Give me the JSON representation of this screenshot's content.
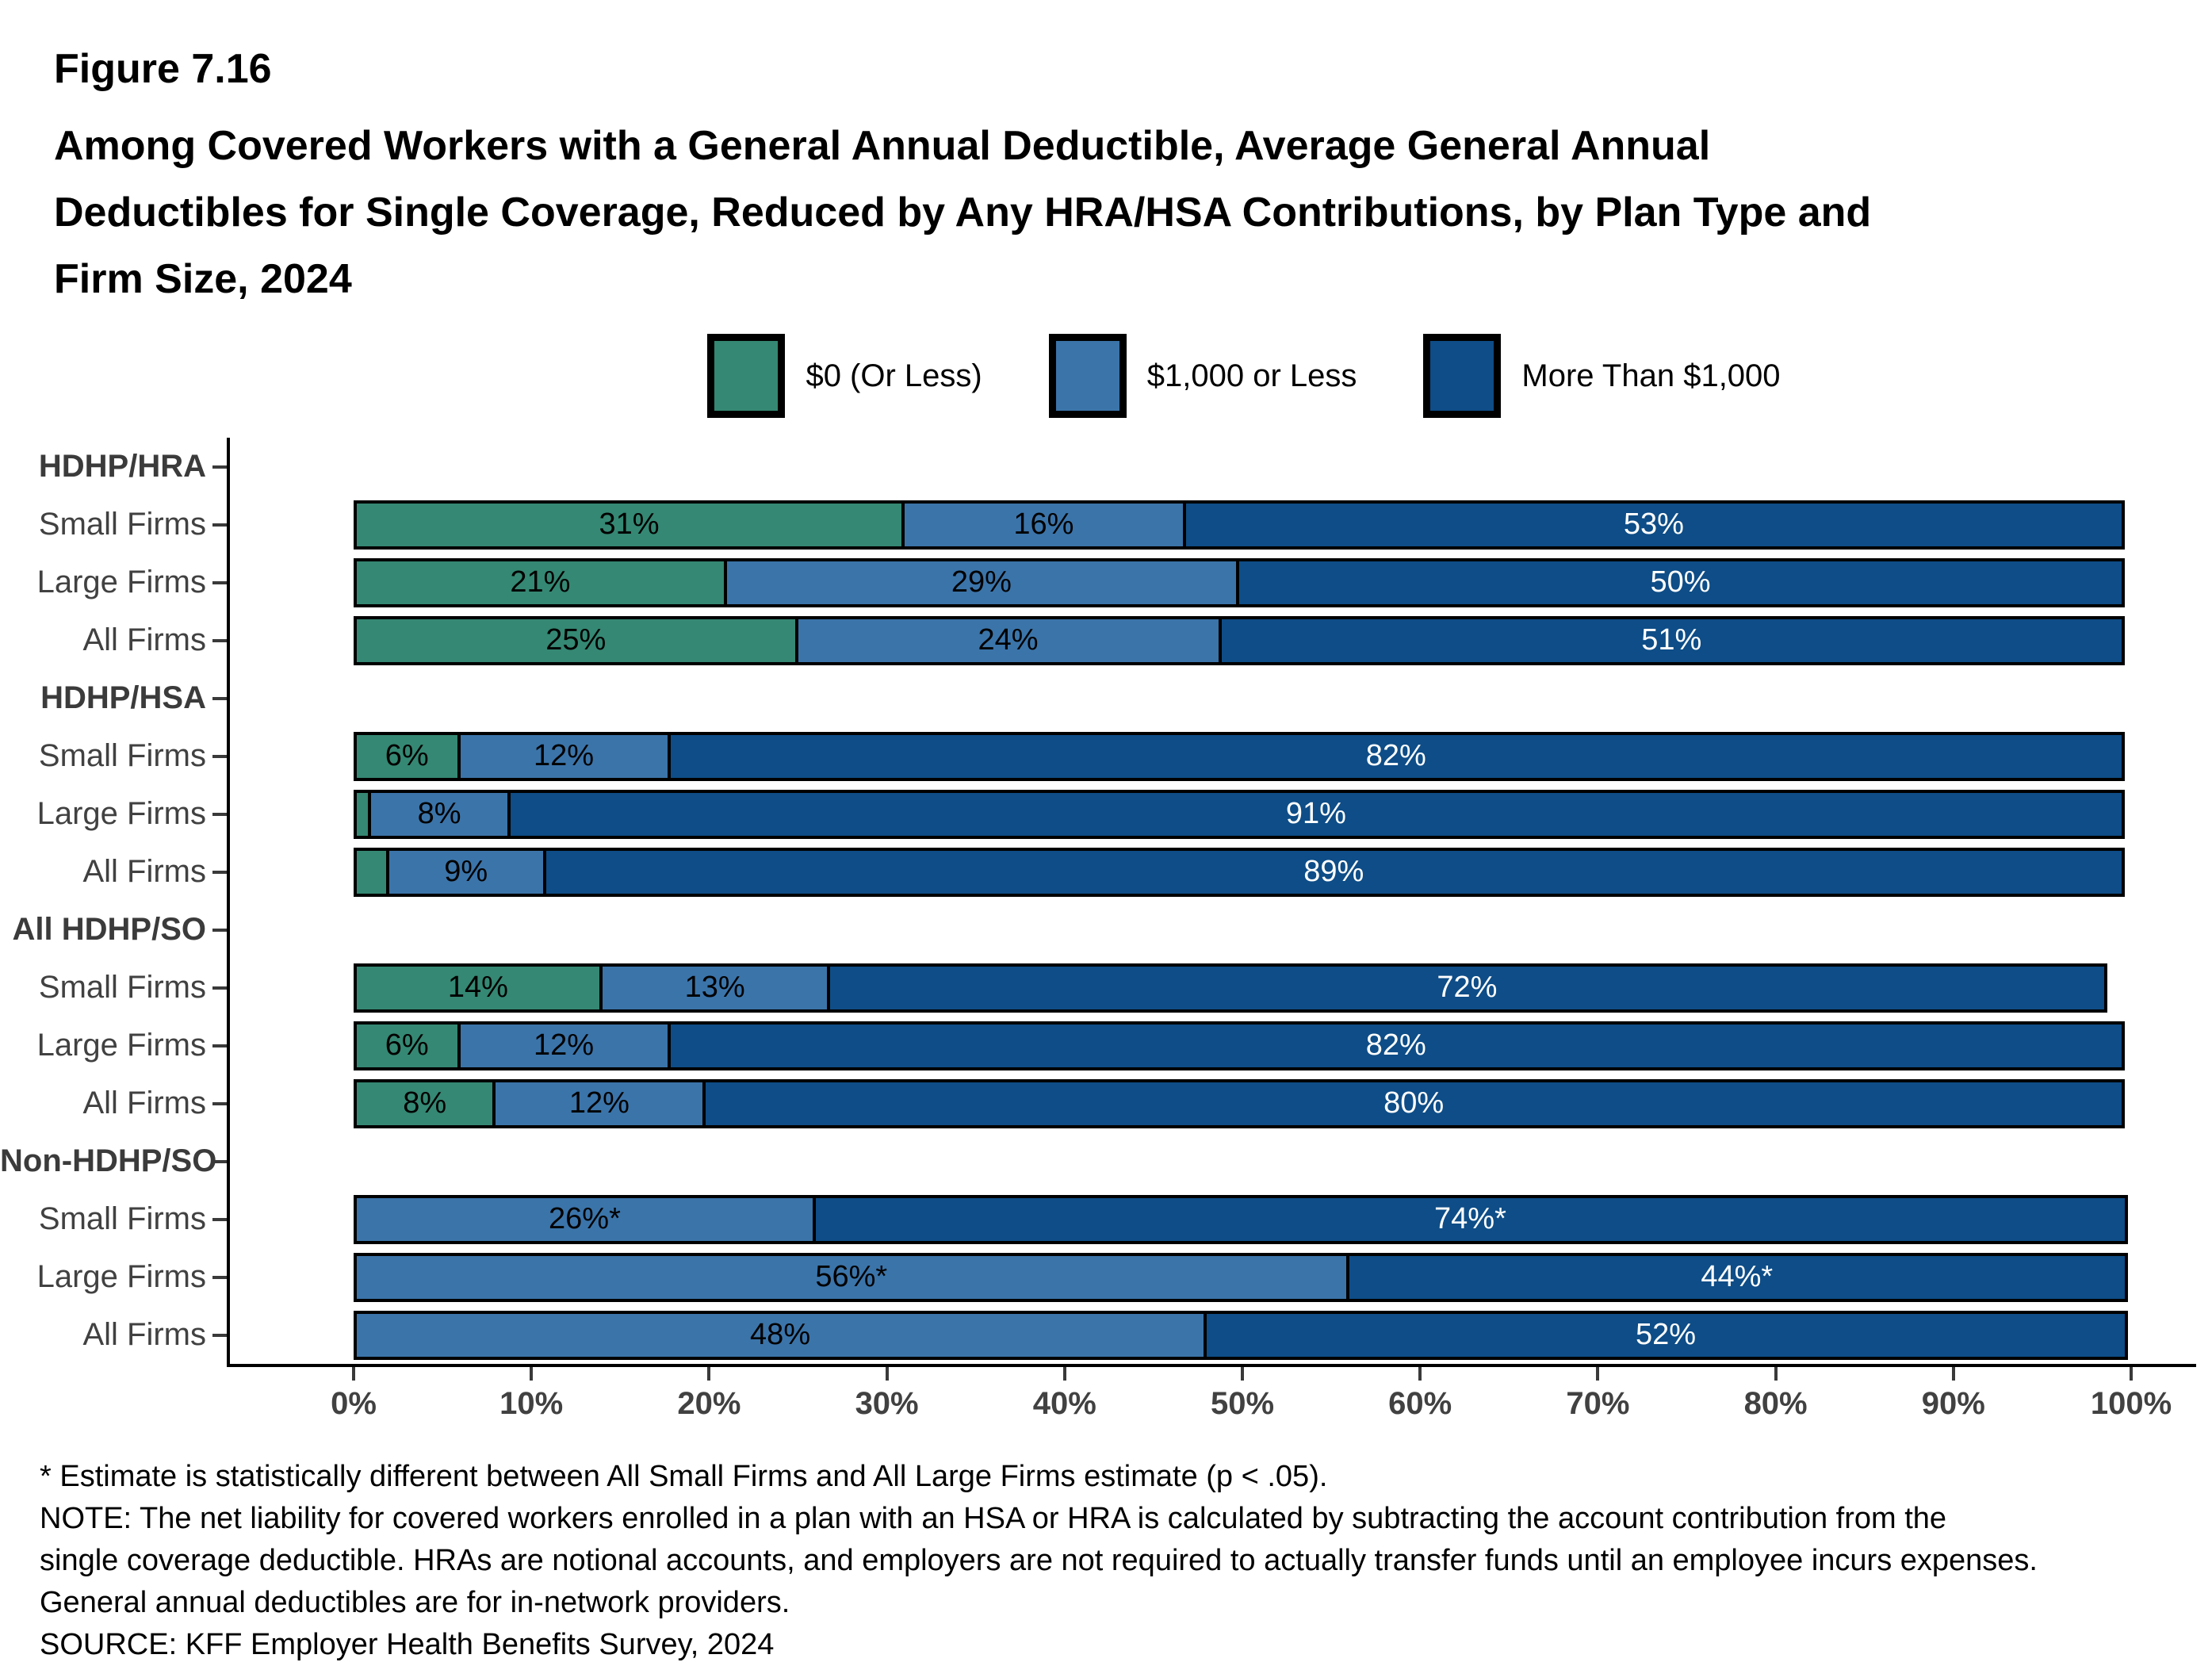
{
  "figure": {
    "number": "Figure 7.16",
    "title_lines": [
      "Among Covered Workers with a General Annual Deductible, Average General Annual",
      "Deductibles for Single Coverage, Reduced by Any HRA/HSA Contributions, by Plan Type and",
      "Firm Size, 2024"
    ]
  },
  "chart_data": {
    "type": "bar",
    "orientation": "horizontal",
    "stacked": true,
    "unit": "percent",
    "xlim": [
      0,
      100
    ],
    "x_ticks": [
      "0%",
      "10%",
      "20%",
      "30%",
      "40%",
      "50%",
      "60%",
      "70%",
      "80%",
      "90%",
      "100%"
    ],
    "grid": false,
    "legend": {
      "position": "top-center",
      "items": [
        {
          "name": "$0 (Or Less)",
          "color": "#358873",
          "label_text_color": "#000000"
        },
        {
          "name": "$1,000 or Less",
          "color": "#3B74A9",
          "label_text_color": "#000000"
        },
        {
          "name": "More Than $1,000",
          "color": "#0E4D87",
          "label_text_color": "#ffffff"
        }
      ]
    },
    "groups": [
      {
        "label": "HDHP/HRA",
        "rows": [
          {
            "label": "Small Firms",
            "values": [
              31,
              16,
              53
            ],
            "value_labels": [
              "31%",
              "16%",
              "53%"
            ]
          },
          {
            "label": "Large Firms",
            "values": [
              21,
              29,
              50
            ],
            "value_labels": [
              "21%",
              "29%",
              "50%"
            ]
          },
          {
            "label": "All Firms",
            "values": [
              25,
              24,
              51
            ],
            "value_labels": [
              "25%",
              "24%",
              "51%"
            ]
          }
        ]
      },
      {
        "label": "HDHP/HSA",
        "rows": [
          {
            "label": "Small Firms",
            "values": [
              6,
              12,
              82
            ],
            "value_labels": [
              "6%",
              "12%",
              "82%"
            ]
          },
          {
            "label": "Large Firms",
            "values": [
              1,
              8,
              91
            ],
            "value_labels": [
              "",
              "8%",
              "91%"
            ]
          },
          {
            "label": "All Firms",
            "values": [
              2,
              9,
              89
            ],
            "value_labels": [
              "",
              "9%",
              "89%"
            ]
          }
        ]
      },
      {
        "label": "All HDHP/SO",
        "rows": [
          {
            "label": "Small Firms",
            "values": [
              14,
              13,
              72
            ],
            "value_labels": [
              "14%",
              "13%",
              "72%"
            ]
          },
          {
            "label": "Large Firms",
            "values": [
              6,
              12,
              82
            ],
            "value_labels": [
              "6%",
              "12%",
              "82%"
            ]
          },
          {
            "label": "All Firms",
            "values": [
              8,
              12,
              80
            ],
            "value_labels": [
              "8%",
              "12%",
              "80%"
            ]
          }
        ]
      },
      {
        "label": "Non-HDHP/SO",
        "rows": [
          {
            "label": "Small Firms",
            "values": [
              0,
              26,
              74
            ],
            "value_labels": [
              "",
              "26%*",
              "74%*"
            ]
          },
          {
            "label": "Large Firms",
            "values": [
              0,
              56,
              44
            ],
            "value_labels": [
              "",
              "56%*",
              "44%*"
            ]
          },
          {
            "label": "All Firms",
            "values": [
              0,
              48,
              52
            ],
            "value_labels": [
              "",
              "48%",
              "52%"
            ]
          }
        ]
      }
    ],
    "axis_color": "#000000",
    "tick_color": "#3a3a3a",
    "y_label_color": "#414141"
  },
  "footnotes": [
    "* Estimate is statistically different between All Small Firms and All Large Firms estimate (p < .05).",
    "NOTE: The net liability for covered workers enrolled in a plan with an HSA or HRA is calculated by subtracting the account contribution from the",
    "single coverage deductible. HRAs are notional accounts, and employers are not required to actually transfer funds until an employee incurs expenses.",
    "General annual deductibles are for in-network providers.",
    "SOURCE: KFF Employer Health Benefits Survey, 2024"
  ]
}
